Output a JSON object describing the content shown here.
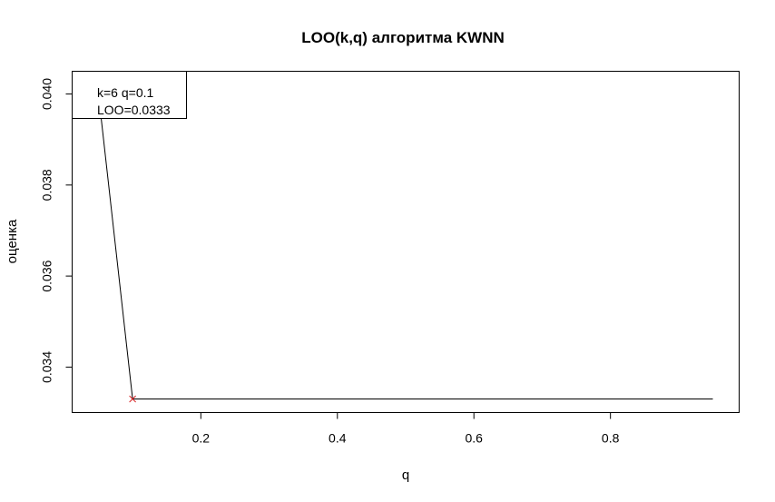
{
  "chart_data": {
    "type": "line",
    "title": "LOO(k,q) алгоритма KWNN",
    "xlabel": "q",
    "ylabel": "оценка",
    "xlim": [
      0.05,
      0.95
    ],
    "ylim": [
      0.0332,
      0.0403
    ],
    "x_ticks": [
      0.2,
      0.4,
      0.6,
      0.8
    ],
    "x_tick_labels": [
      "0.2",
      "0.4",
      "0.6",
      "0.8"
    ],
    "y_ticks": [
      0.034,
      0.036,
      0.038,
      0.04
    ],
    "y_tick_labels": [
      "0.034",
      "0.036",
      "0.038",
      "0.040"
    ],
    "grid": false,
    "series": [
      {
        "color": "#000000",
        "x": [
          0.05,
          0.1,
          0.15,
          0.2,
          0.25,
          0.3,
          0.35,
          0.4,
          0.45,
          0.5,
          0.55,
          0.6,
          0.65,
          0.7,
          0.75,
          0.8,
          0.85,
          0.9,
          0.95
        ],
        "y": [
          0.04,
          0.0333,
          0.0333,
          0.0333,
          0.0333,
          0.0333,
          0.0333,
          0.0333,
          0.0333,
          0.0333,
          0.0333,
          0.0333,
          0.0333,
          0.0333,
          0.0333,
          0.0333,
          0.0333,
          0.0333,
          0.0333
        ]
      }
    ],
    "highlight": {
      "x": 0.1,
      "y": 0.0333,
      "marker": "x",
      "color": "#d62728"
    },
    "legend": {
      "position": "top-left",
      "lines": [
        "k=6 q=0.1",
        "LOO=0.0333"
      ]
    }
  }
}
